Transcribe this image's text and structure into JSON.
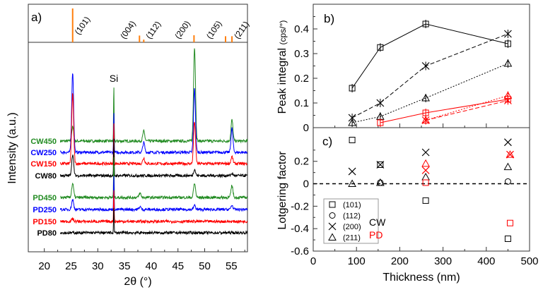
{
  "chart_data": [
    {
      "type": "line",
      "panel_label": "a)",
      "xlabel": "2θ (°)",
      "ylabel": "Intensity (a.u.)",
      "xlim": [
        17,
        58
      ],
      "xticks": [
        20,
        25,
        30,
        35,
        40,
        45,
        50,
        55
      ],
      "reference_peaks": [
        {
          "label": "(101)",
          "x": 25.3,
          "rel": 1.0
        },
        {
          "label": "(004)",
          "x": 37.8,
          "rel": 0.2
        },
        {
          "label": "(112)",
          "x": 38.6,
          "rel": 0.08
        },
        {
          "label": "(200)",
          "x": 48.0,
          "rel": 0.21
        },
        {
          "label": "(105)",
          "x": 53.9,
          "rel": 0.18
        },
        {
          "label": "(211)",
          "x": 55.1,
          "rel": 0.18
        }
      ],
      "reference_color": "#ff7f0e",
      "annotation": {
        "text": "Si",
        "x": 33.0
      },
      "series": [
        {
          "name": "CW450",
          "color": "#228b22",
          "peaks": [
            [
              25.3,
              20
            ],
            [
              33.0,
              80
            ],
            [
              38.6,
              14
            ],
            [
              48.1,
              134
            ],
            [
              55.1,
              30
            ]
          ]
        },
        {
          "name": "CW250",
          "color": "#0000ff",
          "peaks": [
            [
              25.3,
              114
            ],
            [
              33.0,
              60
            ],
            [
              38.6,
              14
            ],
            [
              48.1,
              90
            ],
            [
              55.1,
              34
            ]
          ]
        },
        {
          "name": "CW150",
          "color": "#ff0000",
          "peaks": [
            [
              25.3,
              100
            ],
            [
              33.0,
              60
            ],
            [
              38.6,
              8
            ],
            [
              48.1,
              60
            ],
            [
              55.1,
              10
            ]
          ]
        },
        {
          "name": "CW80",
          "color": "#000000",
          "peaks": [
            [
              25.3,
              30
            ],
            [
              33.0,
              55
            ],
            [
              48.1,
              9
            ],
            [
              55.1,
              3
            ]
          ]
        },
        {
          "name": "PD450",
          "color": "#228b22",
          "peaks": [
            [
              25.3,
              20
            ],
            [
              33.0,
              60
            ],
            [
              37.9,
              6
            ],
            [
              48.1,
              20
            ],
            [
              55.1,
              17
            ]
          ]
        },
        {
          "name": "PD250",
          "color": "#0000ff",
          "peaks": [
            [
              25.3,
              14
            ],
            [
              33.0,
              50
            ],
            [
              37.9,
              4
            ],
            [
              48.1,
              6
            ],
            [
              55.1,
              6
            ]
          ]
        },
        {
          "name": "PD150",
          "color": "#ff0000",
          "peaks": [
            [
              25.3,
              4
            ],
            [
              33.0,
              50
            ]
          ]
        },
        {
          "name": "PD80",
          "color": "#000000",
          "peaks": [
            [
              33.0,
              40
            ]
          ]
        }
      ]
    },
    {
      "type": "line",
      "panel_label": "b)",
      "ylabel": "Peak integral",
      "ylabel_unit": "(cps/°)",
      "xlim": [
        0,
        500
      ],
      "ylim": [
        0,
        0.5
      ],
      "yticks": [
        0.0,
        0.1,
        0.2,
        0.3,
        0.4
      ],
      "series": [
        {
          "group": "CW",
          "plane": "(101)",
          "color": "#000000",
          "style": "solid",
          "marker": "square",
          "x": [
            90,
            155,
            260,
            450
          ],
          "y": [
            0.16,
            0.325,
            0.42,
            0.34
          ]
        },
        {
          "group": "CW",
          "plane": "(200)",
          "color": "#000000",
          "style": "dashed",
          "marker": "x",
          "x": [
            90,
            155,
            260,
            450
          ],
          "y": [
            0.04,
            0.1,
            0.25,
            0.38
          ]
        },
        {
          "group": "CW",
          "plane": "(211)",
          "color": "#000000",
          "style": "dotted",
          "marker": "triangle",
          "x": [
            90,
            155,
            260,
            450
          ],
          "y": [
            0.02,
            0.045,
            0.12,
            0.26
          ]
        },
        {
          "group": "PD",
          "plane": "(101)",
          "color": "#ff0000",
          "style": "solid",
          "marker": "square",
          "x": [
            155,
            260,
            450
          ],
          "y": [
            0.02,
            0.06,
            0.115
          ]
        },
        {
          "group": "PD",
          "plane": "(200)",
          "color": "#ff0000",
          "style": "dashed",
          "marker": "x",
          "x": [
            260,
            450
          ],
          "y": [
            0.03,
            0.11
          ]
        },
        {
          "group": "PD",
          "plane": "(211)",
          "color": "#ff0000",
          "style": "dotted",
          "marker": "triangle",
          "x": [
            260,
            450
          ],
          "y": [
            0.03,
            0.13
          ]
        }
      ]
    },
    {
      "type": "scatter",
      "panel_label": "c)",
      "xlabel": "Thickness (nm)",
      "ylabel": "Lotgering factor",
      "xlim": [
        0,
        500
      ],
      "ylim": [
        -0.6,
        0.5
      ],
      "xticks": [
        0,
        100,
        200,
        300,
        400,
        500
      ],
      "yticks": [
        -0.6,
        -0.4,
        -0.2,
        0.0,
        0.2
      ],
      "reference_line": {
        "y": 0.0,
        "style": "dashed"
      },
      "legend": {
        "position": "bottom-left",
        "markers": [
          {
            "marker": "square",
            "label": "(101)"
          },
          {
            "marker": "circle",
            "label": "(112)"
          },
          {
            "marker": "x",
            "label": "(200)"
          },
          {
            "marker": "triangle",
            "label": "(211)"
          }
        ],
        "groups": [
          {
            "label": "CW",
            "color": "#000000"
          },
          {
            "label": "PD",
            "color": "#ff0000"
          }
        ]
      },
      "series": [
        {
          "group": "CW",
          "plane": "(101)",
          "color": "#000000",
          "marker": "square",
          "x": [
            90,
            155,
            260,
            450
          ],
          "y": [
            0.39,
            0.17,
            -0.15,
            -0.49
          ]
        },
        {
          "group": "CW",
          "plane": "(112)",
          "color": "#000000",
          "marker": "circle",
          "x": [
            155,
            450
          ],
          "y": [
            0.01,
            0.02
          ]
        },
        {
          "group": "CW",
          "plane": "(200)",
          "color": "#000000",
          "marker": "x",
          "x": [
            90,
            155,
            260,
            450
          ],
          "y": [
            0.11,
            0.17,
            0.28,
            0.37
          ]
        },
        {
          "group": "CW",
          "plane": "(211)",
          "color": "#000000",
          "marker": "triangle",
          "x": [
            90,
            155,
            260,
            450
          ],
          "y": [
            0.0,
            0.01,
            0.06,
            0.15
          ]
        },
        {
          "group": "PD",
          "plane": "(101)",
          "color": "#ff0000",
          "marker": "square",
          "x": [
            260,
            455
          ],
          "y": [
            0.01,
            -0.35
          ]
        },
        {
          "group": "PD",
          "plane": "(200)",
          "color": "#ff0000",
          "marker": "x",
          "x": [
            260,
            455
          ],
          "y": [
            0.12,
            0.26
          ]
        },
        {
          "group": "PD",
          "plane": "(211)",
          "color": "#ff0000",
          "marker": "triangle",
          "x": [
            260,
            455
          ],
          "y": [
            0.18,
            0.26
          ]
        }
      ]
    }
  ]
}
